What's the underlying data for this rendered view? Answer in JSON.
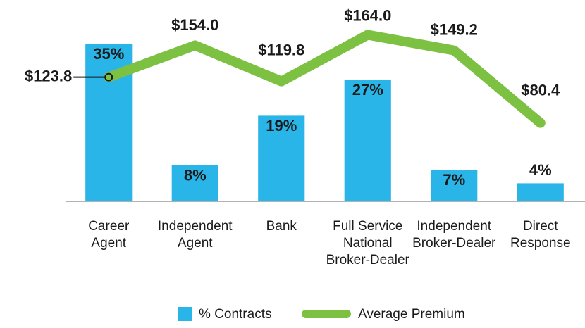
{
  "chart_data": {
    "type": "bar-line",
    "categories": [
      [
        "Career",
        "Agent"
      ],
      [
        "Independent",
        "Agent"
      ],
      [
        "Bank"
      ],
      [
        "Full Service",
        "National",
        "Broker-Dealer"
      ],
      [
        "Independent",
        "Broker-Dealer"
      ],
      [
        "Direct",
        "Response"
      ]
    ],
    "series": [
      {
        "name": "% Contracts",
        "type": "bar",
        "color": "#29b5e8",
        "values": [
          35,
          8,
          19,
          27,
          7,
          4
        ],
        "value_labels": [
          "35%",
          "8%",
          "19%",
          "27%",
          "7%",
          "4%"
        ]
      },
      {
        "name": "Average Premium",
        "type": "line",
        "axis": "y2",
        "color": "#7dc142",
        "values": [
          123.8,
          154.0,
          119.8,
          164.0,
          149.2,
          80.4
        ],
        "value_labels": [
          "$123.8",
          "$154.0",
          "$119.8",
          "$164.0",
          "$149.2",
          "$80.4"
        ]
      }
    ],
    "ylim": [
      0,
      40
    ],
    "y2lim": [
      6,
      177
    ],
    "legend": "bottom"
  }
}
